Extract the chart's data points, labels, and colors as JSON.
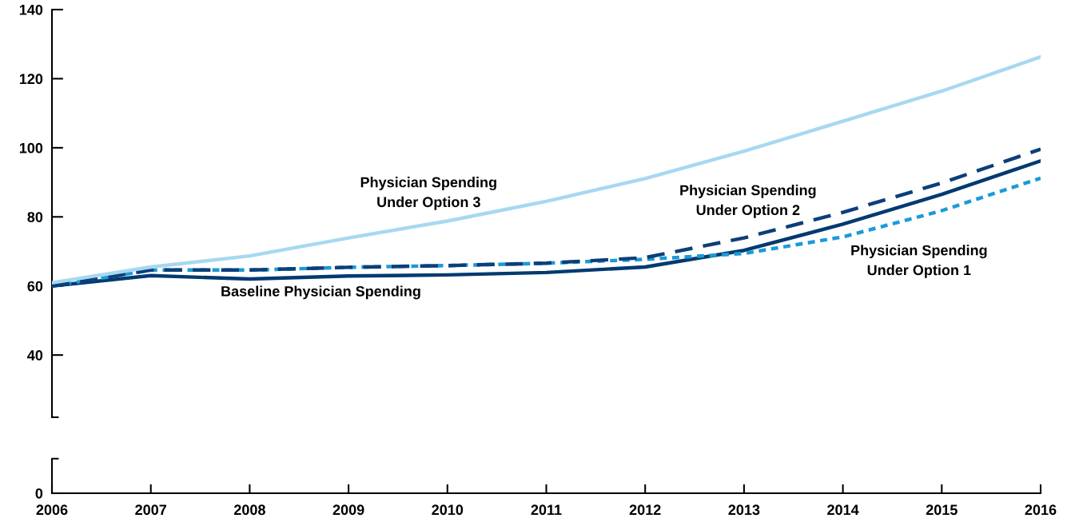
{
  "chart_data": {
    "type": "line",
    "x": [
      2006,
      2007,
      2008,
      2009,
      2010,
      2011,
      2012,
      2013,
      2014,
      2015,
      2016
    ],
    "series": [
      {
        "name": "Baseline Physician Spending",
        "color": "#003a70",
        "line_style": "solid",
        "values": [
          60.0,
          63.0,
          62.0,
          62.9,
          63.2,
          63.9,
          65.5,
          70.3,
          77.9,
          86.5,
          96.2
        ]
      },
      {
        "name": "Physician Spending\nUnder Option 1",
        "color": "#1a9bd7",
        "line_style": "dotted",
        "values": [
          60.0,
          64.6,
          64.6,
          65.4,
          65.9,
          66.6,
          67.7,
          69.4,
          74.2,
          81.8,
          91.2
        ]
      },
      {
        "name": "Physician Spending\nUnder Option 2",
        "color": "#0b3f7a",
        "line_style": "dashed",
        "values": [
          60.0,
          64.6,
          64.6,
          65.4,
          65.9,
          66.6,
          68.2,
          73.9,
          81.3,
          89.8,
          99.6
        ]
      },
      {
        "name": "Physician Spending\nUnder Option 3",
        "color": "#a8d8f0",
        "line_style": "solid",
        "values": [
          60.9,
          65.5,
          68.7,
          73.9,
          78.8,
          84.5,
          91.1,
          99.0,
          107.7,
          116.4,
          126.3
        ]
      }
    ],
    "xlim": [
      2006,
      2016
    ],
    "xticks": [
      2006,
      2007,
      2008,
      2009,
      2010,
      2011,
      2012,
      2013,
      2014,
      2015,
      2016
    ],
    "ylim": [
      0,
      140
    ],
    "yticks": [
      0,
      40,
      60,
      80,
      100,
      120,
      140
    ],
    "grid": false,
    "legend": false,
    "marker": "none"
  }
}
